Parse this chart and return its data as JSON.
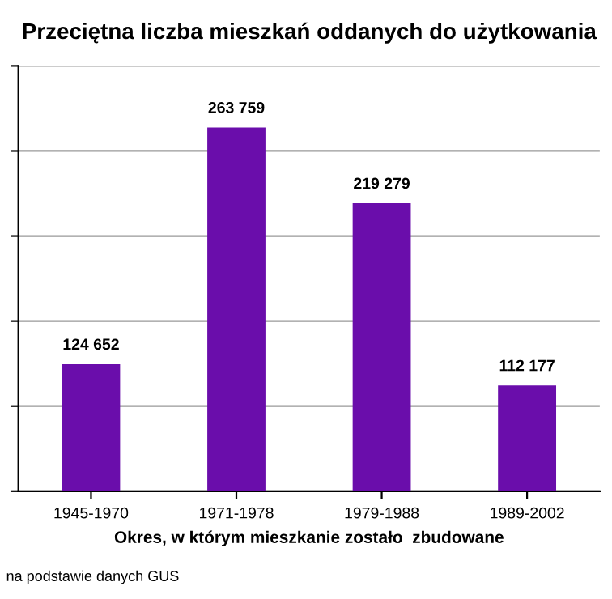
{
  "chart_data": {
    "type": "bar",
    "title": "Przeciętna liczba mieszkań oddanych do użytkowania",
    "xlabel": "Okres, w którym mieszkanie zostało  zbudowane",
    "categories": [
      "1945-1970",
      "1971-1978",
      "1979-1988",
      "1989-2002"
    ],
    "values": [
      124652,
      263759,
      219279,
      112177
    ],
    "value_labels": [
      "124 652",
      "263 759",
      "219 279",
      "112 177"
    ],
    "color": "#6a0dab",
    "ylim": [
      50000,
      300000
    ],
    "yticks": [
      {
        "value": 50000,
        "label": null
      },
      {
        "value": 100000,
        "label": null
      },
      {
        "value": 150000,
        "label": null
      },
      {
        "value": 200000,
        "label": null
      },
      {
        "value": 250000,
        "label": null
      },
      {
        "value": 300000,
        "label": null
      }
    ],
    "grid": "y",
    "tick_labels": "x",
    "annotations": [
      "na podstawie danych GUS"
    ]
  }
}
